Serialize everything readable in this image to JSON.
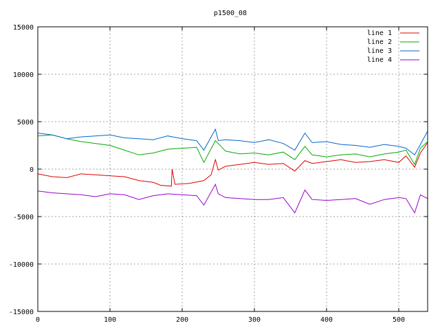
{
  "chart_data": {
    "type": "line",
    "title": "p1500_08",
    "xlabel": "",
    "ylabel": "",
    "xlim": [
      0,
      540
    ],
    "ylim": [
      -15000,
      15000
    ],
    "x_ticks": [
      0,
      100,
      200,
      300,
      400,
      500
    ],
    "y_ticks": [
      -15000,
      -10000,
      -5000,
      0,
      5000,
      10000,
      15000
    ],
    "grid": true,
    "legend_position": "top-right",
    "series": [
      {
        "name": "line 1",
        "color": "#dd0000",
        "x": [
          0,
          20,
          40,
          60,
          80,
          100,
          120,
          140,
          160,
          170,
          185,
          186,
          190,
          210,
          230,
          240,
          246,
          250,
          260,
          280,
          300,
          320,
          340,
          356,
          370,
          380,
          400,
          420,
          440,
          460,
          480,
          500,
          510,
          522,
          530,
          540
        ],
        "y": [
          -500,
          -800,
          -900,
          -500,
          -600,
          -700,
          -800,
          -1200,
          -1400,
          -1700,
          -1800,
          0,
          -1600,
          -1500,
          -1200,
          -600,
          1000,
          -100,
          300,
          500,
          700,
          500,
          600,
          -200,
          900,
          600,
          800,
          1000,
          700,
          800,
          1000,
          700,
          1400,
          200,
          1700,
          2800
        ]
      },
      {
        "name": "line 2",
        "color": "#00aa00",
        "x": [
          0,
          20,
          40,
          60,
          80,
          100,
          120,
          140,
          160,
          180,
          200,
          220,
          230,
          246,
          250,
          260,
          280,
          300,
          320,
          340,
          356,
          370,
          380,
          400,
          420,
          440,
          460,
          480,
          500,
          510,
          522,
          530,
          540
        ],
        "y": [
          3500,
          3600,
          3200,
          2900,
          2700,
          2500,
          2000,
          1500,
          1700,
          2100,
          2200,
          2300,
          700,
          3000,
          2700,
          1900,
          1600,
          1700,
          1500,
          1800,
          1000,
          2400,
          1500,
          1300,
          1500,
          1600,
          1300,
          1600,
          1800,
          2000,
          500,
          2200,
          2900
        ]
      },
      {
        "name": "line 3",
        "color": "#0066cc",
        "x": [
          0,
          20,
          40,
          60,
          80,
          100,
          120,
          140,
          160,
          180,
          200,
          220,
          230,
          246,
          250,
          260,
          280,
          300,
          320,
          340,
          356,
          370,
          380,
          400,
          420,
          440,
          460,
          480,
          500,
          510,
          522,
          530,
          540
        ],
        "y": [
          3800,
          3600,
          3200,
          3400,
          3500,
          3600,
          3300,
          3200,
          3100,
          3500,
          3200,
          3000,
          2000,
          4200,
          3000,
          3100,
          3000,
          2800,
          3100,
          2700,
          2000,
          3800,
          2800,
          2900,
          2600,
          2500,
          2300,
          2600,
          2400,
          2200,
          1500,
          2600,
          4000
        ]
      },
      {
        "name": "line 4",
        "color": "#9900cc",
        "x": [
          0,
          20,
          40,
          60,
          80,
          100,
          120,
          140,
          160,
          180,
          200,
          220,
          230,
          246,
          250,
          260,
          280,
          300,
          320,
          340,
          356,
          370,
          380,
          400,
          420,
          440,
          460,
          480,
          500,
          510,
          522,
          530,
          540
        ],
        "y": [
          -2300,
          -2500,
          -2600,
          -2700,
          -2900,
          -2600,
          -2700,
          -3200,
          -2800,
          -2600,
          -2700,
          -2800,
          -3800,
          -1600,
          -2600,
          -3000,
          -3100,
          -3200,
          -3200,
          -3000,
          -4600,
          -2200,
          -3200,
          -3300,
          -3200,
          -3100,
          -3700,
          -3200,
          -3000,
          -3100,
          -4600,
          -2700,
          -3100
        ]
      }
    ]
  }
}
